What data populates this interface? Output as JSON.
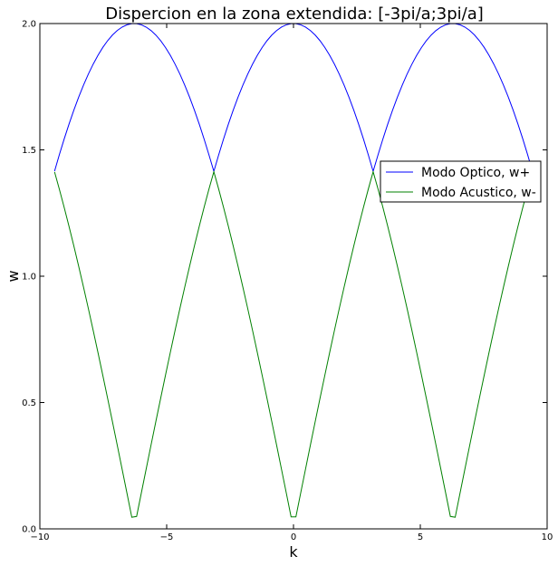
{
  "chart_data": {
    "type": "line",
    "title": "Dispercion en la zona extendida: [-3pi/a;3pi/a]",
    "xlabel": "k",
    "ylabel": "w",
    "xlim": [
      -10,
      10
    ],
    "ylim": [
      0.0,
      2.0
    ],
    "xticks": [
      -10,
      -5,
      0,
      5,
      10
    ],
    "yticks": [
      0.0,
      0.5,
      1.0,
      1.5,
      2.0
    ],
    "xtick_labels": [
      "−10",
      "−5",
      "0",
      "5",
      "10"
    ],
    "ytick_labels": [
      "0.0",
      "0.5",
      "1.0",
      "1.5",
      "2.0"
    ],
    "grid": false,
    "legend_position": "right",
    "series": [
      {
        "name": "Modo Optico, w+",
        "color": "#0000ff",
        "formula": "sqrt(2 + 2|cos(k/2)|)",
        "x_range": [
          -9.42,
          9.42
        ],
        "samples": 100
      },
      {
        "name": "Modo Acustico, w-",
        "color": "#008000",
        "formula": "sqrt(2 - 2|cos(k/2)|)",
        "x_range": [
          -9.42,
          9.42
        ],
        "samples": 100
      }
    ]
  }
}
